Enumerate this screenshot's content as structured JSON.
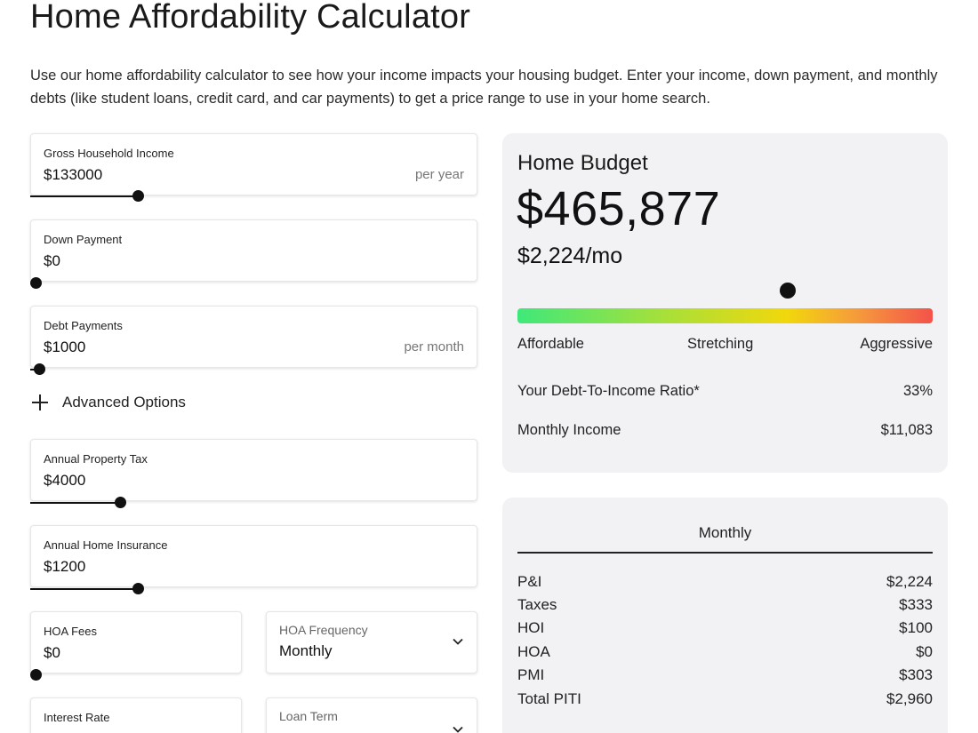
{
  "page": {
    "title": "Home Affordability Calculator",
    "intro": "Use our home affordability calculator to see how your income impacts your housing budget. Enter your income, down payment, and monthly debts (like student loans, credit card, and car payments) to get a price range to use in your home search."
  },
  "form": {
    "income": {
      "label": "Gross Household Income",
      "value": "$133000",
      "unit": "per year",
      "slider_fraction": 0.24
    },
    "down_payment": {
      "label": "Down Payment",
      "value": "$0",
      "slider_fraction": 0.0
    },
    "debt": {
      "label": "Debt Payments",
      "value": "$1000",
      "unit": "per month",
      "slider_fraction": 0.02
    },
    "advanced_options_label": "Advanced Options",
    "property_tax": {
      "label": "Annual Property Tax",
      "value": "$4000",
      "slider_fraction": 0.2
    },
    "home_insurance": {
      "label": "Annual Home Insurance",
      "value": "$1200",
      "slider_fraction": 0.24
    },
    "hoa_fees": {
      "label": "HOA Fees",
      "value": "$0",
      "slider_fraction": 0.0
    },
    "hoa_frequency": {
      "label": "HOA Frequency",
      "value": "Monthly"
    },
    "interest_rate": {
      "label": "Interest Rate"
    },
    "loan_term": {
      "label": "Loan Term"
    }
  },
  "budget": {
    "title": "Home Budget",
    "amount": "$465,877",
    "monthly": "$2,224/mo",
    "gauge_fraction": 0.65,
    "gauge_labels": [
      "Affordable",
      "Stretching",
      "Aggressive"
    ],
    "dti_label": "Your Debt-To-Income Ratio*",
    "dti_value": "33%",
    "monthly_income_label": "Monthly Income",
    "monthly_income_value": "$11,083"
  },
  "breakdown": {
    "header": "Monthly",
    "rows": [
      {
        "label": "P&I",
        "value": "$2,224"
      },
      {
        "label": "Taxes",
        "value": "$333"
      },
      {
        "label": "HOI",
        "value": "$100"
      },
      {
        "label": "HOA",
        "value": "$0"
      },
      {
        "label": "PMI",
        "value": "$303"
      },
      {
        "label": "Total PITI",
        "value": "$2,960"
      }
    ]
  },
  "colors": {
    "card_bg": "#f2f1f4",
    "gauge_start": "#3fe87a",
    "gauge_mid": "#f2d70c",
    "gauge_end": "#f4524a"
  }
}
